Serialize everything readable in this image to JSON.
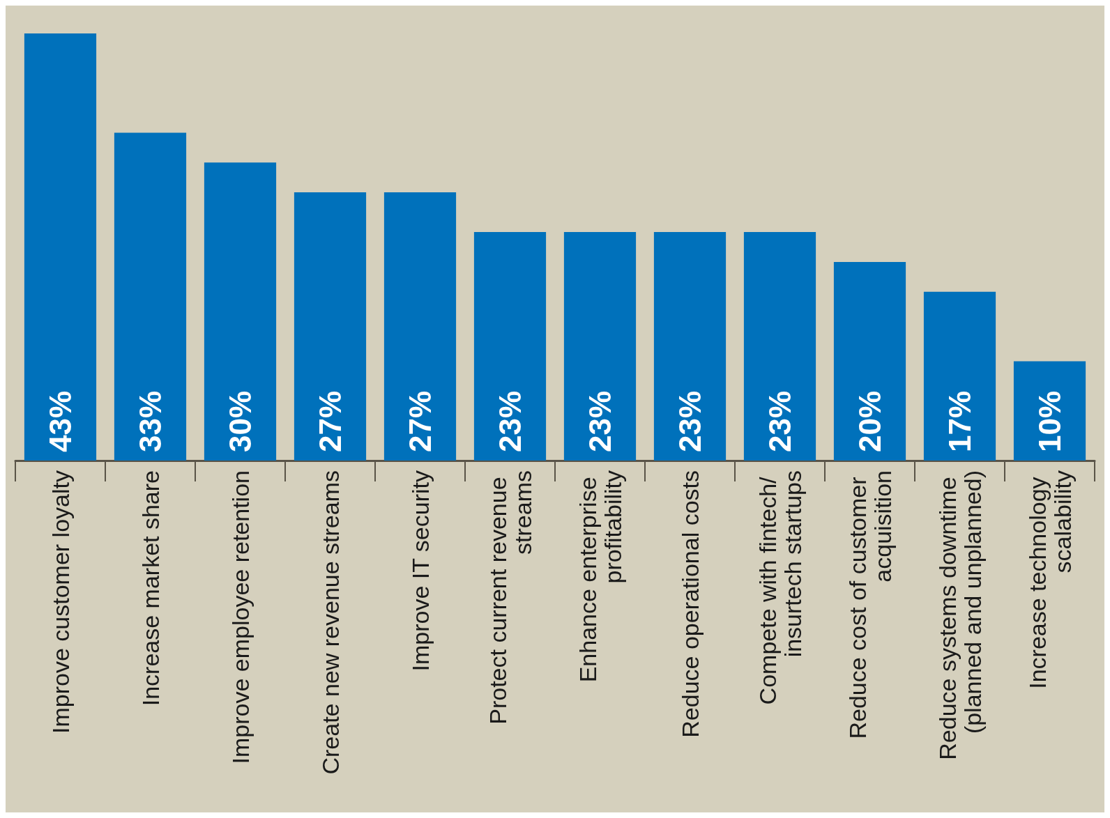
{
  "chart_data": {
    "type": "bar",
    "categories": [
      "Improve customer loyalty",
      "Increase market share",
      "Improve employee retention",
      "Create new revenue streams",
      "Improve IT security",
      "Protect current revenue streams",
      "Enhance enterprise profitability",
      "Reduce operational costs",
      "Compete with fintech/ insurtech startups",
      "Reduce cost of customer acquisition",
      "Reduce systems downtime (planned and unplanned)",
      "Increase technology scalability"
    ],
    "values": [
      43,
      33,
      30,
      27,
      27,
      23,
      23,
      23,
      23,
      20,
      17,
      10
    ],
    "value_labels": [
      "43%",
      "33%",
      "30%",
      "27%",
      "27%",
      "23%",
      "23%",
      "23%",
      "23%",
      "20%",
      "17%",
      "10%"
    ],
    "color": "#0071bb"
  }
}
